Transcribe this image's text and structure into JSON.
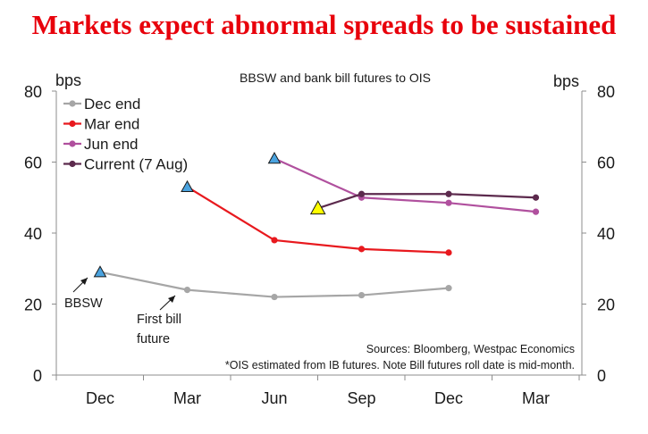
{
  "headline": "Markets expect abnormal spreads to be sustained",
  "chart_data": {
    "type": "line",
    "title": "BBSW and bank bill futures to OIS",
    "ylabel_left": "bps",
    "ylabel_right": "bps",
    "ylim": [
      0,
      80
    ],
    "yticks": [
      0,
      20,
      40,
      60,
      80
    ],
    "categories": [
      "Dec",
      "Mar",
      "Jun",
      "Sep",
      "Dec",
      "Mar"
    ],
    "series": [
      {
        "name": "Dec end",
        "color": "#a6a6a6",
        "x": [
          0,
          1,
          2,
          3,
          4
        ],
        "values": [
          29,
          24,
          22,
          22.5,
          24.5
        ],
        "bbsw_marker_x": 0
      },
      {
        "name": "Mar end",
        "color": "#e8191e",
        "x": [
          1,
          2,
          3,
          4
        ],
        "values": [
          53,
          38,
          35.5,
          34.5
        ],
        "bbsw_marker_x": 1
      },
      {
        "name": "Jun end",
        "color": "#b0509e",
        "x": [
          2,
          3,
          4,
          5
        ],
        "values": [
          61,
          50,
          48.5,
          46
        ],
        "bbsw_marker_x": 2
      },
      {
        "name": "Current (7 Aug)",
        "color": "#5c2a4d",
        "x": [
          2.5,
          3,
          4,
          5
        ],
        "values": [
          47,
          51,
          51,
          50
        ],
        "bbsw_marker_x": 2.5
      }
    ],
    "bbsw_marker_colors": {
      "blue": "#4aa3df",
      "yellow": "#ffff00"
    },
    "annotations": [
      {
        "text": "BBSW"
      },
      {
        "text": "First bill"
      },
      {
        "text": "future"
      }
    ],
    "notes": [
      "Sources: Bloomberg, Westpac Economics",
      "*OIS estimated from IB futures. Note Bill futures roll date is mid-month."
    ]
  }
}
